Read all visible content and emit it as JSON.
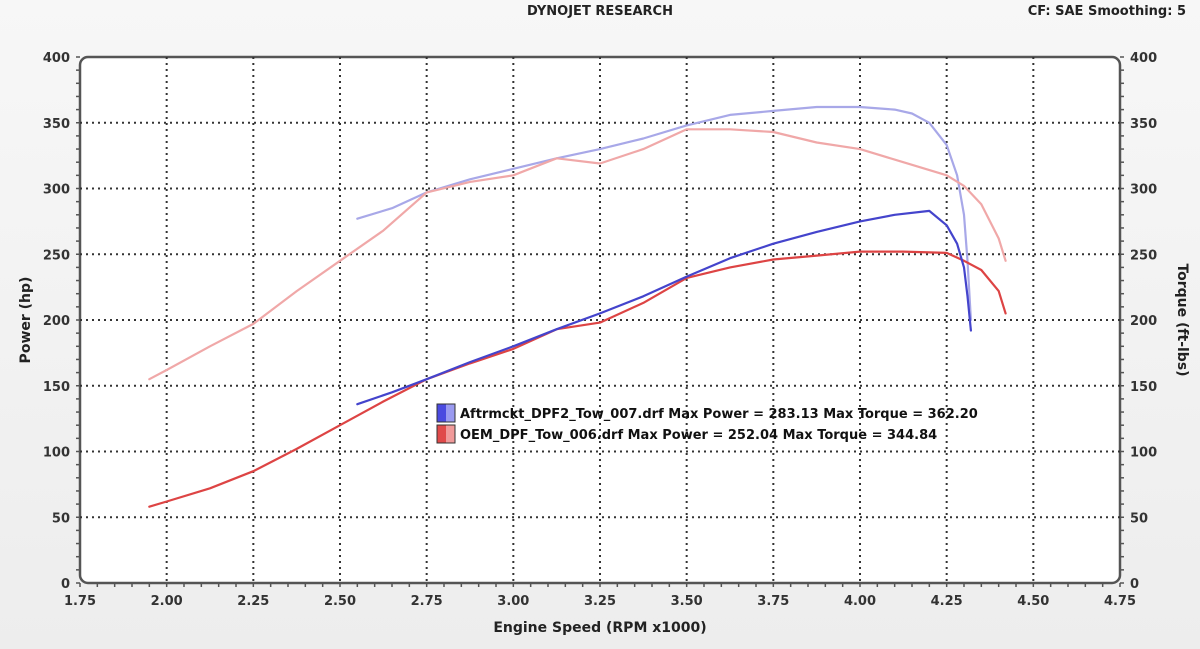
{
  "header": {
    "title": "DYNOJET RESEARCH",
    "correction": "CF: SAE  Smoothing: 5"
  },
  "axes": {
    "x_label": "Engine Speed (RPM x1000)",
    "y_left_label": "Power (hp)",
    "y_right_label": "Torque (ft-lbs)",
    "x_ticks": [
      "1.75",
      "2.00",
      "2.25",
      "2.50",
      "2.75",
      "3.00",
      "3.25",
      "3.50",
      "3.75",
      "4.00",
      "4.25",
      "4.50",
      "4.75"
    ],
    "y_ticks": [
      "0",
      "50",
      "100",
      "150",
      "200",
      "250",
      "300",
      "350",
      "400"
    ]
  },
  "legend": [
    {
      "label": "Aftrmckt_DPF2_Tow_007.drf Max Power = 283.13 Max Torque = 362.20",
      "color": "#4a4ae0"
    },
    {
      "label": "OEM_DPF_Tow_006.drf Max Power = 252.04 Max Torque = 344.84",
      "color": "#e04a4a"
    }
  ],
  "chart_data": {
    "type": "line",
    "title": "DYNOJET RESEARCH",
    "subtitle": "CF: SAE  Smoothing: 5",
    "xlabel": "Engine Speed (RPM x1000)",
    "ylabel": "Power (hp)",
    "y2label": "Torque (ft-lbs)",
    "xlim": [
      1.75,
      4.75
    ],
    "ylim": [
      0,
      400
    ],
    "y2lim": [
      0,
      400
    ],
    "grid": true,
    "legend_position": "center",
    "series": [
      {
        "name": "Aftrmckt_DPF2_Tow_007.drf Power (hp)",
        "axis": "left",
        "color": "#4444cc",
        "max": 283.13,
        "x": [
          2.55,
          2.65,
          2.75,
          2.875,
          3.0,
          3.125,
          3.25,
          3.375,
          3.5,
          3.625,
          3.75,
          3.875,
          4.0,
          4.1,
          4.2,
          4.25,
          4.28,
          4.3,
          4.31,
          4.32
        ],
        "values": [
          136,
          145,
          155,
          168,
          180,
          193,
          205,
          218,
          233,
          247,
          258,
          267,
          275,
          280,
          283,
          272,
          258,
          240,
          218,
          192
        ]
      },
      {
        "name": "Aftrmckt_DPF2_Tow_007.drf Torque (ft-lbs)",
        "axis": "right",
        "color": "#a8a8e8",
        "max": 362.2,
        "x": [
          2.55,
          2.65,
          2.75,
          2.875,
          3.0,
          3.125,
          3.25,
          3.375,
          3.5,
          3.625,
          3.75,
          3.875,
          4.0,
          4.1,
          4.15,
          4.2,
          4.25,
          4.28,
          4.3,
          4.31,
          4.32
        ],
        "values": [
          277,
          285,
          297,
          307,
          315,
          323,
          330,
          338,
          348,
          356,
          359,
          362,
          362,
          360,
          357,
          350,
          333,
          310,
          280,
          245,
          200
        ]
      },
      {
        "name": "OEM_DPF_Tow_006.drf Power (hp)",
        "axis": "left",
        "color": "#dd4444",
        "max": 252.04,
        "x": [
          1.95,
          2.0,
          2.125,
          2.25,
          2.375,
          2.5,
          2.625,
          2.75,
          2.875,
          3.0,
          3.125,
          3.25,
          3.375,
          3.5,
          3.625,
          3.75,
          3.875,
          4.0,
          4.125,
          4.25,
          4.3,
          4.35,
          4.4,
          4.42
        ],
        "values": [
          58,
          62,
          72,
          85,
          102,
          120,
          138,
          155,
          167,
          178,
          193,
          198,
          213,
          232,
          240,
          246,
          249,
          252,
          252,
          251,
          245,
          238,
          222,
          205
        ]
      },
      {
        "name": "OEM_DPF_Tow_006.drf Torque (ft-lbs)",
        "axis": "right",
        "color": "#f0a8a8",
        "max": 344.84,
        "x": [
          1.95,
          2.0,
          2.125,
          2.25,
          2.375,
          2.5,
          2.625,
          2.75,
          2.875,
          3.0,
          3.125,
          3.25,
          3.375,
          3.5,
          3.625,
          3.75,
          3.875,
          4.0,
          4.125,
          4.25,
          4.3,
          4.35,
          4.4,
          4.42
        ],
        "values": [
          155,
          162,
          180,
          197,
          222,
          245,
          268,
          297,
          305,
          310,
          323,
          319,
          330,
          345,
          345,
          343,
          335,
          330,
          320,
          310,
          302,
          288,
          262,
          245
        ]
      }
    ]
  }
}
